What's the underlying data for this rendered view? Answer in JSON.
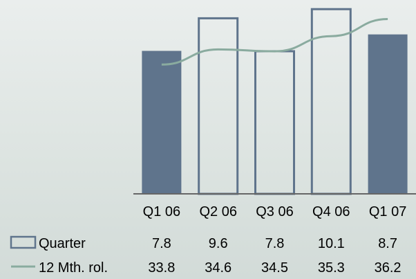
{
  "chart_data": {
    "type": "bar",
    "categories": [
      "Q1 06",
      "Q2 06",
      "Q3 06",
      "Q4 06",
      "Q1 07"
    ],
    "series": [
      {
        "name": "Quarter",
        "type": "bar",
        "values": [
          7.8,
          9.6,
          7.8,
          10.1,
          8.7
        ],
        "value_labels": [
          "7.8",
          "9.6",
          "7.8",
          "10.1",
          "8.7"
        ],
        "bar_styles": [
          "filled",
          "outline",
          "outline",
          "outline",
          "filled"
        ]
      },
      {
        "name": "12 Mth. rol.",
        "type": "line",
        "values": [
          33.8,
          34.6,
          34.5,
          35.3,
          36.2
        ],
        "value_labels": [
          "33.8",
          "34.6",
          "34.5",
          "35.3",
          "36.2"
        ]
      }
    ],
    "bar_ylim": [
      0,
      10.6
    ],
    "line_ylim": [
      27,
      37.2
    ],
    "grid": false,
    "legend_position": "bottom-left data table",
    "colors": {
      "bar_fill": "#5f748c",
      "bar_outline": "#5f748c",
      "line": "#8aab9f",
      "axis": "#666666"
    }
  }
}
